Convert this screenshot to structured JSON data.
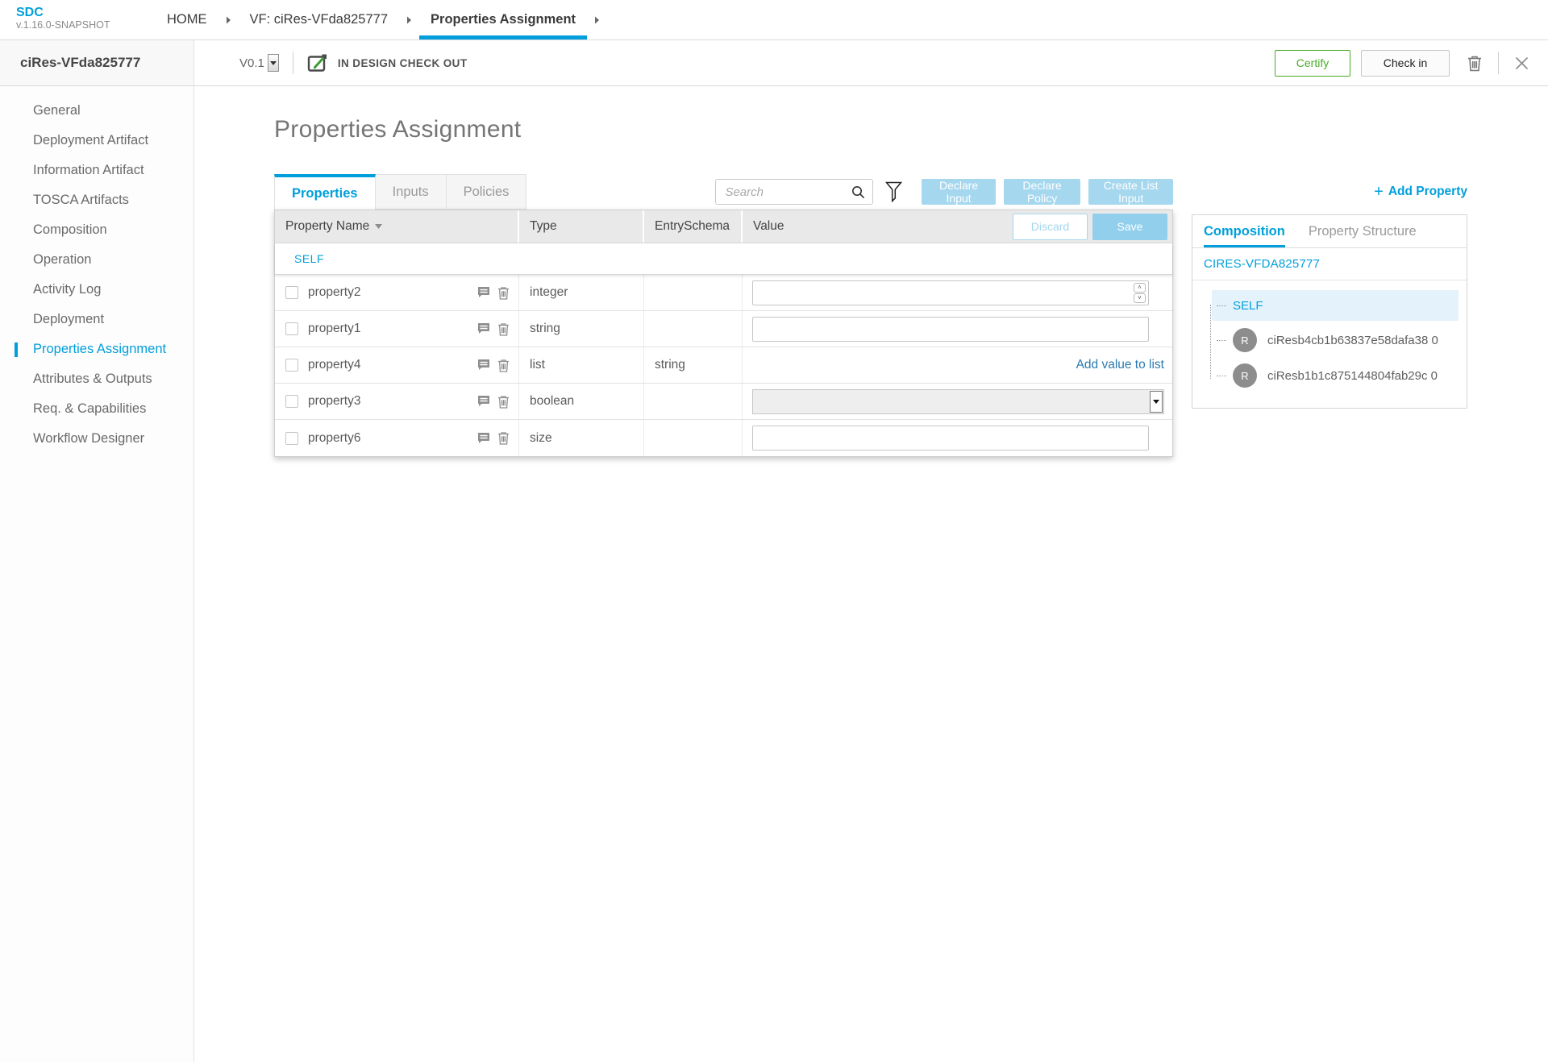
{
  "app": {
    "logo": "SDC",
    "version": "v.1.16.0-SNAPSHOT"
  },
  "breadcrumbs": [
    {
      "label": "HOME",
      "active": false
    },
    {
      "label": "VF: ciRes-VFda825777",
      "active": false
    },
    {
      "label": "Properties Assignment",
      "active": true
    }
  ],
  "workspace": {
    "entity_name": "ciRes-VFda825777",
    "version": "V0.1",
    "status": "IN DESIGN CHECK OUT",
    "certify_label": "Certify",
    "check_in_label": "Check in"
  },
  "sidebar": {
    "items": [
      {
        "label": "General",
        "active": false
      },
      {
        "label": "Deployment Artifact",
        "active": false
      },
      {
        "label": "Information Artifact",
        "active": false
      },
      {
        "label": "TOSCA Artifacts",
        "active": false
      },
      {
        "label": "Composition",
        "active": false
      },
      {
        "label": "Operation",
        "active": false
      },
      {
        "label": "Activity Log",
        "active": false
      },
      {
        "label": "Deployment",
        "active": false
      },
      {
        "label": "Properties Assignment",
        "active": true
      },
      {
        "label": "Attributes & Outputs",
        "active": false
      },
      {
        "label": "Req. & Capabilities",
        "active": false
      },
      {
        "label": "Workflow Designer",
        "active": false
      }
    ]
  },
  "main": {
    "title": "Properties Assignment",
    "tabs": [
      "Properties",
      "Inputs",
      "Policies"
    ],
    "active_tab": "Properties",
    "search_placeholder": "Search",
    "buttons": [
      "Declare Input",
      "Declare Policy",
      "Create List Input"
    ],
    "add_property_label": "Add Property",
    "add_property_plus": "+",
    "table": {
      "columns": [
        "Property Name",
        "Type",
        "EntrySchema",
        "Value"
      ],
      "discard_label": "Discard",
      "save_label": "Save",
      "group_label": "SELF",
      "add_value_link": "Add value to list",
      "rows": [
        {
          "name": "property2",
          "type": "integer",
          "entry_schema": "",
          "value": ""
        },
        {
          "name": "property1",
          "type": "string",
          "entry_schema": "",
          "value": ""
        },
        {
          "name": "property4",
          "type": "list",
          "entry_schema": "string",
          "value": ""
        },
        {
          "name": "property3",
          "type": "boolean",
          "entry_schema": "",
          "value": ""
        },
        {
          "name": "property6",
          "type": "size",
          "entry_schema": "",
          "value": ""
        }
      ]
    }
  },
  "right_panel": {
    "tabs": [
      "Composition",
      "Property Structure"
    ],
    "active_tab": "Composition",
    "root": "CIRES-VFDA825777",
    "tree": [
      {
        "label": "SELF",
        "selected": true,
        "avatar": ""
      },
      {
        "label": "ciResb4cb1b63837e58dafa38 0",
        "selected": false,
        "avatar": "R"
      },
      {
        "label": "ciResb1b1c875144804fab29c 0",
        "selected": false,
        "avatar": "R"
      }
    ]
  },
  "colors": {
    "accent_blue": "#009fdb",
    "light_blue_button": "#a5d7ee",
    "save_button_blue": "#92cfec",
    "certify_green": "#49ab27",
    "selected_tree_row": "#e4f3fb"
  }
}
